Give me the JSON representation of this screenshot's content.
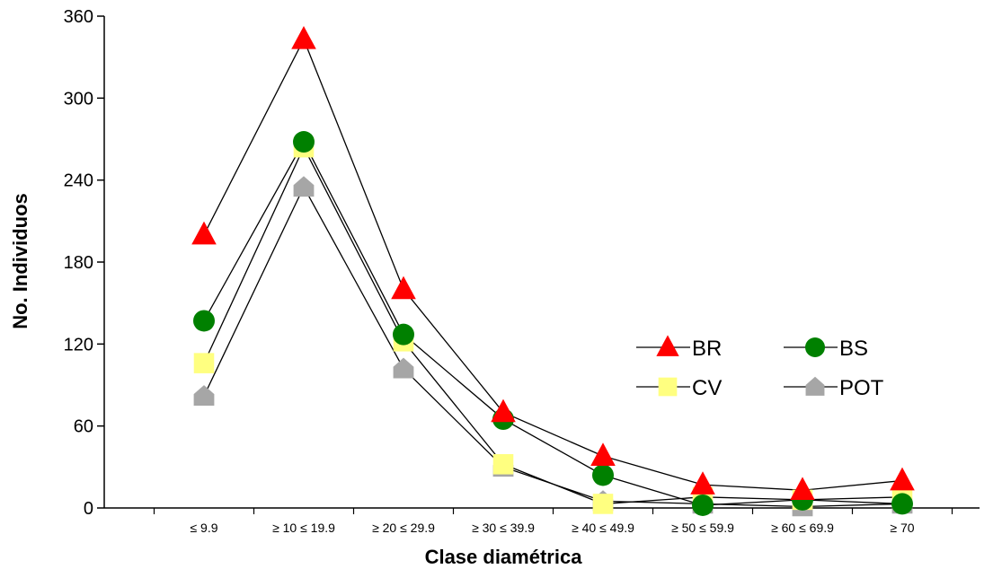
{
  "chart_data": {
    "type": "line",
    "xlabel": "Clase diamétrica",
    "ylabel": "No. Individuos",
    "ylim": [
      0,
      360
    ],
    "yticks": [
      0,
      60,
      120,
      180,
      240,
      300,
      360
    ],
    "categories": [
      "≤ 9.9",
      "≥ 10 ≤ 19.9",
      "≥ 20 ≤ 29.9",
      "≥ 30 ≤ 39.9",
      "≥ 40 ≤ 49.9",
      "≥ 50 ≤ 59.9",
      "≥ 60 ≤ 69.9",
      "≥ 70"
    ],
    "grid": false,
    "legend": "right-center",
    "series": [
      {
        "name": "BR",
        "marker": "triangle",
        "color": "#ff0000",
        "values": [
          200,
          343,
          160,
          70,
          38,
          17,
          13,
          20
        ]
      },
      {
        "name": "BS",
        "marker": "circle",
        "color": "#008000",
        "values": [
          137,
          268,
          127,
          65,
          24,
          2,
          6,
          3
        ]
      },
      {
        "name": "CV",
        "marker": "square",
        "color": "#ffff80",
        "values": [
          106,
          264,
          122,
          32,
          3,
          8,
          6,
          8
        ]
      },
      {
        "name": "POT",
        "marker": "house",
        "color": "#a6a6a6",
        "values": [
          82,
          235,
          102,
          30,
          5,
          3,
          1,
          3
        ]
      }
    ]
  }
}
